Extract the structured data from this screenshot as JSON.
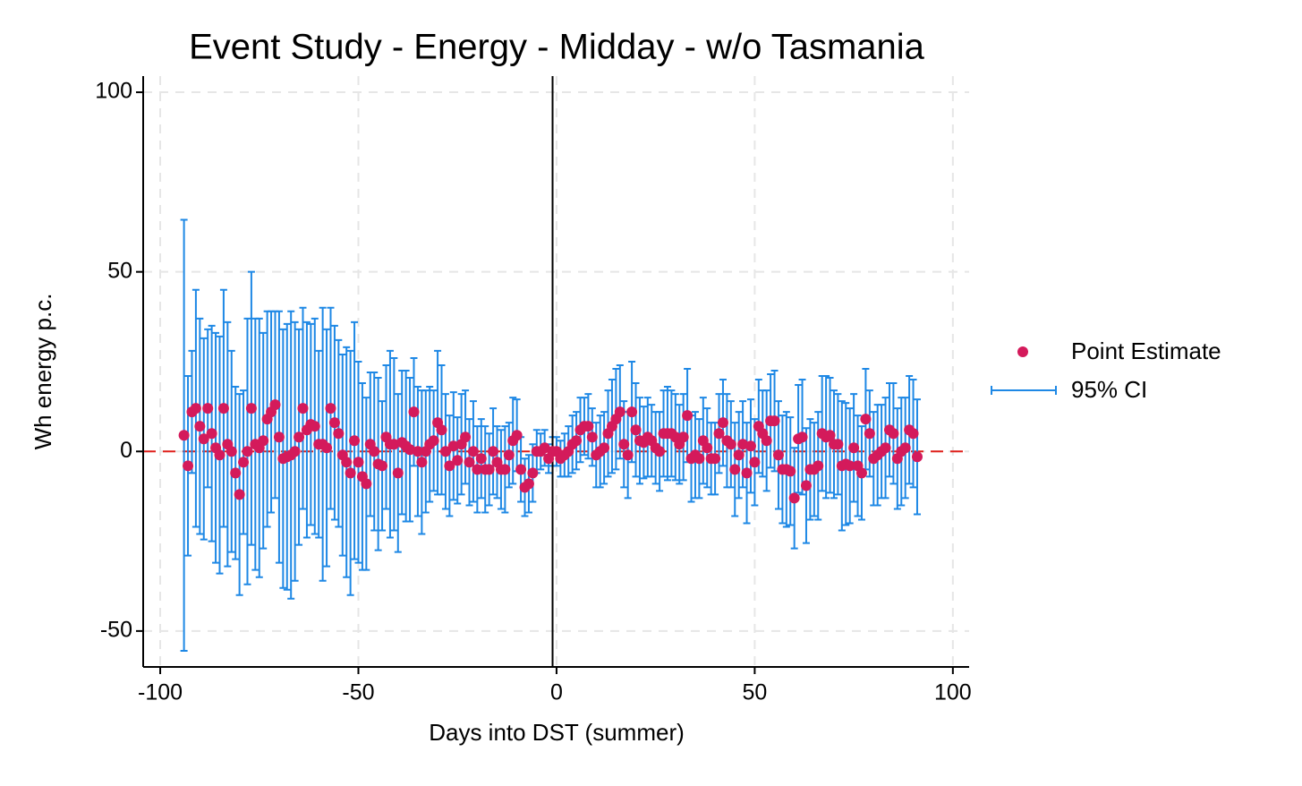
{
  "chart_data": {
    "type": "errorbar",
    "title": "Event Study - Energy - Midday - w/o Tasmania",
    "x_label": "Days into DST (summer)",
    "y_label": "Wh energy p.c.",
    "x": [
      -94,
      -93,
      -92,
      -91,
      -90,
      -89,
      -88,
      -87,
      -86,
      -85,
      -84,
      -83,
      -82,
      -81,
      -80,
      -79,
      -78,
      -77,
      -76,
      -75,
      -74,
      -73,
      -72,
      -71,
      -70,
      -69,
      -68,
      -67,
      -66,
      -65,
      -64,
      -63,
      -62,
      -61,
      -60,
      -59,
      -58,
      -57,
      -56,
      -55,
      -54,
      -53,
      -52,
      -51,
      -50,
      -49,
      -48,
      -47,
      -46,
      -45,
      -44,
      -43,
      -42,
      -41,
      -40,
      -39,
      -38,
      -37,
      -36,
      -35,
      -34,
      -33,
      -32,
      -31,
      -30,
      -29,
      -28,
      -27,
      -26,
      -25,
      -24,
      -23,
      -22,
      -21,
      -20,
      -19,
      -18,
      -17,
      -16,
      -15,
      -14,
      -13,
      -12,
      -11,
      -10,
      -9,
      -8,
      -7,
      -6,
      -5,
      -4,
      -3,
      -2,
      -1,
      0,
      1,
      2,
      3,
      4,
      5,
      6,
      7,
      8,
      9,
      10,
      11,
      12,
      13,
      14,
      15,
      16,
      17,
      18,
      19,
      20,
      21,
      22,
      23,
      24,
      25,
      26,
      27,
      28,
      29,
      30,
      31,
      32,
      33,
      34,
      35,
      36,
      37,
      38,
      39,
      40,
      41,
      42,
      43,
      44,
      45,
      46,
      47,
      48,
      49,
      50,
      51,
      52,
      53,
      54,
      55,
      56,
      57,
      58,
      59,
      60,
      61,
      62,
      63,
      64,
      65,
      66,
      67,
      68,
      69,
      70,
      71,
      72,
      73,
      74,
      75,
      76,
      77,
      78,
      79,
      80,
      81,
      82,
      83,
      84,
      85,
      86,
      87,
      88,
      89,
      90,
      91
    ],
    "series": [
      {
        "name": "Point Estimate",
        "color": "#d41a5b",
        "values": [
          4.5,
          -4,
          11,
          12,
          7,
          3.5,
          12,
          5,
          1,
          -1,
          12,
          2,
          0,
          -6,
          -12,
          -3,
          0,
          12,
          2,
          1,
          3,
          9,
          11,
          13,
          4,
          -2,
          -1.5,
          -1,
          0,
          4,
          12,
          6,
          7.5,
          7,
          2,
          2,
          1,
          12,
          8,
          5,
          -1,
          -3,
          -6,
          3,
          -3,
          -7,
          -9,
          2,
          0,
          -3.5,
          -4,
          4,
          2,
          2,
          -6,
          2.5,
          1.5,
          0.5,
          11,
          0,
          -3,
          0,
          2,
          3,
          8,
          6,
          0,
          -4,
          1.5,
          -2.5,
          2,
          4,
          -3,
          0,
          -5,
          -2,
          -5,
          -5,
          0,
          -3,
          -5,
          -5,
          -1,
          3,
          4.5,
          -5,
          -10,
          -9,
          -6,
          0,
          0,
          1,
          -2,
          0,
          0,
          -2,
          -1,
          0,
          2,
          3,
          6,
          7,
          7,
          4,
          -1,
          0,
          1,
          5,
          7,
          9,
          11,
          2,
          -1,
          11,
          6,
          3,
          2.5,
          4,
          3,
          1,
          0,
          5,
          5,
          5,
          4,
          2,
          4,
          10,
          -2,
          -1,
          -2,
          3,
          1,
          -2,
          -2,
          5,
          8,
          3,
          2,
          -5,
          -1,
          2,
          -6,
          1.5,
          -3,
          7,
          5,
          3,
          8.5,
          8.5,
          -1,
          -5,
          -5,
          -5.5,
          -13,
          3.5,
          4,
          -9.5,
          -5,
          -5,
          -4,
          5,
          4,
          4.5,
          2,
          2,
          -4,
          -3.5,
          -4,
          1,
          -4,
          -6,
          9,
          5,
          -2,
          -1,
          0,
          1,
          6,
          5,
          -2,
          0,
          1,
          6,
          5,
          -1.5
        ],
        "errors": [
          60,
          25,
          17,
          33,
          30,
          28,
          22,
          30,
          32,
          33,
          33,
          34,
          28,
          24,
          28,
          20,
          37,
          38,
          35,
          36,
          30,
          30,
          28,
          26,
          35,
          36,
          37,
          40,
          36,
          30,
          28,
          30,
          28,
          30,
          26,
          38,
          33,
          28,
          27,
          26,
          28,
          32,
          34,
          33,
          28,
          26,
          24,
          20,
          22,
          24,
          18,
          20,
          26,
          24,
          22,
          20,
          21,
          20,
          15,
          18,
          20,
          17,
          16,
          14,
          20,
          18,
          16,
          14,
          15,
          12,
          14,
          13,
          12,
          14,
          12,
          11,
          12,
          10,
          12,
          10,
          11,
          12,
          9,
          12,
          10,
          9,
          8,
          8,
          8,
          6,
          5,
          5,
          4,
          4,
          4,
          5,
          6,
          7,
          8,
          8,
          9,
          8,
          9,
          8,
          9,
          10,
          10,
          12,
          13,
          14,
          13,
          12,
          12,
          14,
          13,
          12,
          10,
          11,
          10,
          10,
          11,
          12,
          13,
          12,
          12,
          11,
          12,
          13,
          12,
          12,
          11,
          12,
          11,
          10,
          10,
          11,
          12,
          13,
          12,
          13,
          12,
          12,
          14,
          13,
          12,
          13,
          12,
          14,
          13,
          14,
          15,
          15,
          16,
          15,
          14,
          15,
          16,
          16,
          14,
          13,
          15,
          16,
          17,
          16,
          15,
          14,
          18,
          17,
          16,
          15,
          14,
          13,
          14,
          12,
          13,
          14,
          13,
          14,
          13,
          14,
          14,
          15,
          14,
          15,
          15,
          16
        ],
        "error_name": "95% CI",
        "error_color": "#1e88e5"
      }
    ],
    "xlim": [
      -104.3,
      104.1
    ],
    "ylim": [
      -60,
      104.5
    ],
    "xticks": [
      -100,
      -50,
      0,
      50,
      100
    ],
    "yticks": [
      -50,
      0,
      50,
      100
    ],
    "grid": true,
    "vline": -1,
    "vline_color": "#000000",
    "hline": 0,
    "hline_color": "#e0201b",
    "legend": "right"
  }
}
